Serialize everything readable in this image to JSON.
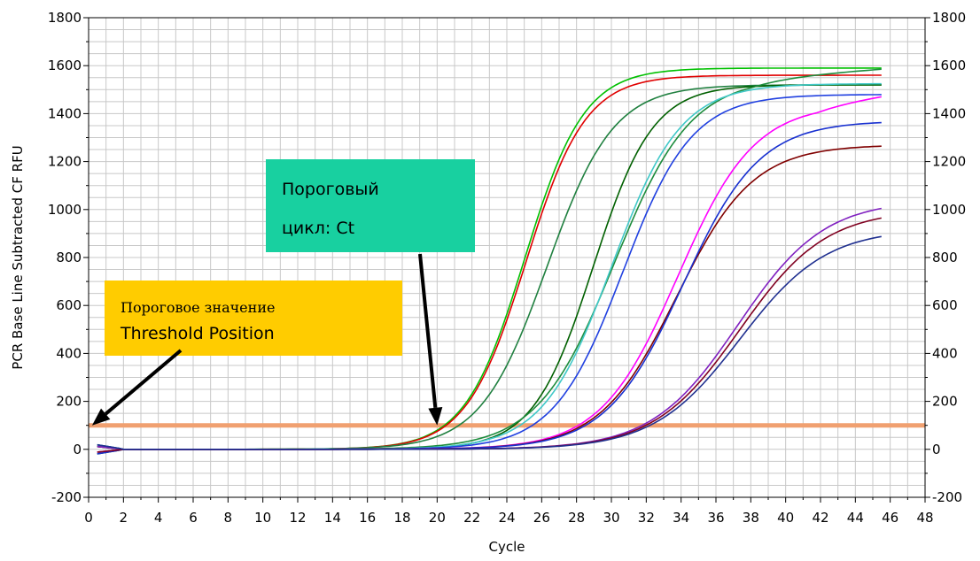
{
  "chart_data": {
    "type": "line",
    "xlabel": "Cycle",
    "ylabel": "PCR Base Line Subtracted CF RFU",
    "xlim": [
      0,
      48
    ],
    "ylim": [
      -200,
      1800
    ],
    "x_ticks": [
      0,
      2,
      4,
      6,
      8,
      10,
      12,
      14,
      16,
      18,
      20,
      22,
      24,
      26,
      28,
      30,
      32,
      34,
      36,
      38,
      40,
      42,
      44,
      46,
      48
    ],
    "y_ticks": [
      -200,
      0,
      200,
      400,
      600,
      800,
      1000,
      1200,
      1400,
      1600,
      1800
    ],
    "y_ticks_right": true,
    "grid": true,
    "threshold": {
      "y": 100,
      "color": "#f0a070"
    },
    "cycles_range": [
      0.5,
      45.5
    ],
    "series": [
      {
        "color": "#00c000",
        "ct": 20.2,
        "max": 1590,
        "slope": 0.58,
        "drift": 0
      },
      {
        "color": "#e00000",
        "ct": 20.3,
        "max": 1560,
        "slope": 0.58,
        "drift": 0
      },
      {
        "color": "#208040",
        "ct": 21.0,
        "max": 1520,
        "slope": 0.52,
        "drift": 0
      },
      {
        "color": "#006000",
        "ct": 24.2,
        "max": 1520,
        "slope": 0.58,
        "drift": 0
      },
      {
        "color": "#1c8c3c",
        "ct": 24.0,
        "max": 1550,
        "slope": 0.45,
        "drift": 5
      },
      {
        "color": "#40c8c8",
        "ct": 24.5,
        "max": 1525,
        "slope": 0.5,
        "drift": 0
      },
      {
        "color": "#2040e0",
        "ct": 25.2,
        "max": 1480,
        "slope": 0.5,
        "drift": 0
      },
      {
        "color": "#ff00ff",
        "ct": 27.8,
        "max": 1440,
        "slope": 0.45,
        "drift": 10
      },
      {
        "color": "#800000",
        "ct": 28.0,
        "max": 1270,
        "slope": 0.45,
        "drift": 0
      },
      {
        "color": "#1830d0",
        "ct": 28.2,
        "max": 1370,
        "slope": 0.45,
        "drift": 0
      },
      {
        "color": "#8020c0",
        "ct": 31.3,
        "max": 1040,
        "slope": 0.4,
        "drift": 0
      },
      {
        "color": "#800020",
        "ct": 31.5,
        "max": 1000,
        "slope": 0.4,
        "drift": 0
      },
      {
        "color": "#203090",
        "ct": 31.7,
        "max": 920,
        "slope": 0.4,
        "drift": 0
      }
    ],
    "annotations": [
      {
        "name": "ct-annotation",
        "bg": "#18d0a0",
        "lines": [
          "Пороговый",
          "цикл: Ct"
        ],
        "arrow_to": [
          20,
          100
        ]
      },
      {
        "name": "threshold-annotation",
        "bg": "#ffcc00",
        "lines": [
          "Пороговое значение",
          "Threshold Position"
        ],
        "arrow_to": [
          0.2,
          100
        ]
      }
    ]
  }
}
